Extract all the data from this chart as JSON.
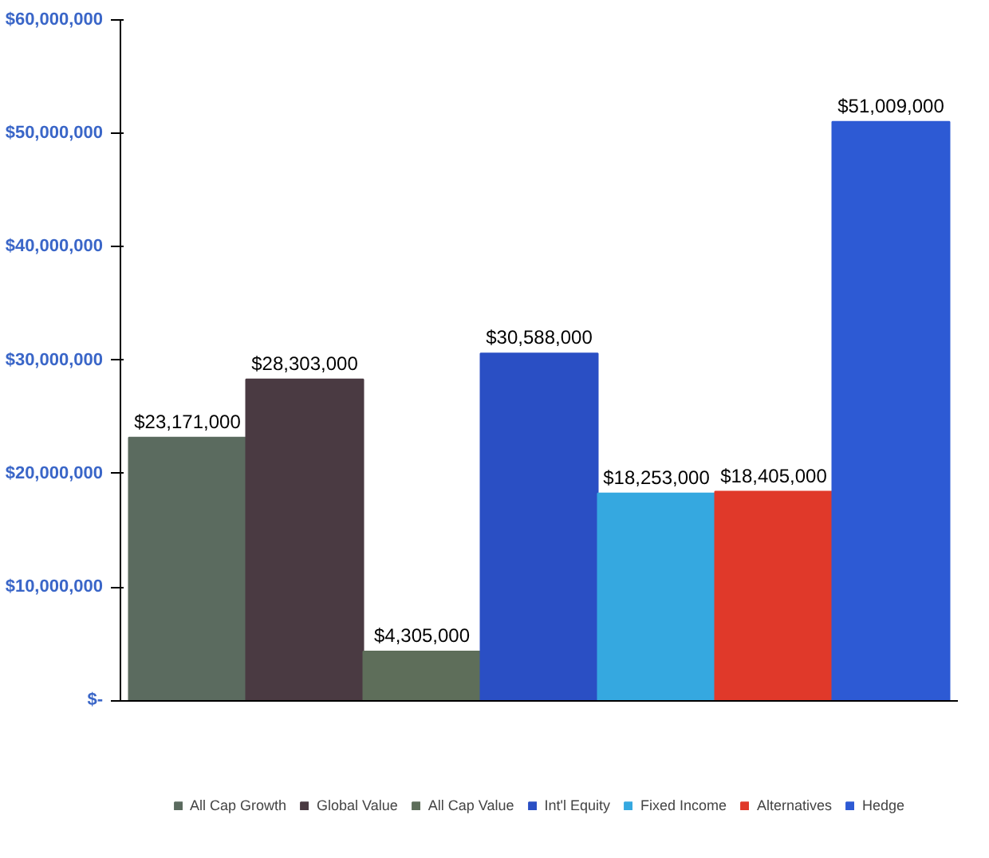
{
  "chart_data": {
    "type": "bar",
    "categories": [
      null
    ],
    "series": [
      {
        "name": "All Cap Growth",
        "color": "#5b6b5f",
        "values": [
          23171000
        ],
        "value_labels": [
          "$23,171,000"
        ]
      },
      {
        "name": "Global Value",
        "color": "#4a3a42",
        "values": [
          28303000
        ],
        "value_labels": [
          "$28,303,000"
        ]
      },
      {
        "name": "All Cap Value",
        "color": "#5e6e5a",
        "values": [
          4305000
        ],
        "value_labels": [
          "$4,305,000"
        ]
      },
      {
        "name": "Int'l Equity",
        "color": "#2a4fc4",
        "values": [
          30588000
        ],
        "value_labels": [
          "$30,588,000"
        ]
      },
      {
        "name": "Fixed Income",
        "color": "#35a8e0",
        "values": [
          18253000
        ],
        "value_labels": [
          "$18,253,000"
        ]
      },
      {
        "name": "Alternatives",
        "color": "#e0392a",
        "values": [
          18405000
        ],
        "value_labels": [
          "$18,405,000"
        ]
      },
      {
        "name": "Hedge",
        "color": "#2d5ad4",
        "values": [
          51009000
        ],
        "value_labels": [
          "$51,009,000"
        ]
      }
    ],
    "ylim": [
      0,
      60000000
    ],
    "yticks": [
      {
        "value": 0,
        "label": "$-"
      },
      {
        "value": 10000000,
        "label": "$10,000,000"
      },
      {
        "value": 20000000,
        "label": "$20,000,000"
      },
      {
        "value": 30000000,
        "label": "$30,000,000"
      },
      {
        "value": 40000000,
        "label": "$40,000,000"
      },
      {
        "value": 50000000,
        "label": "$50,000,000"
      },
      {
        "value": 60000000,
        "label": "$60,000,000"
      }
    ],
    "grid": false,
    "legend": "bottom"
  }
}
